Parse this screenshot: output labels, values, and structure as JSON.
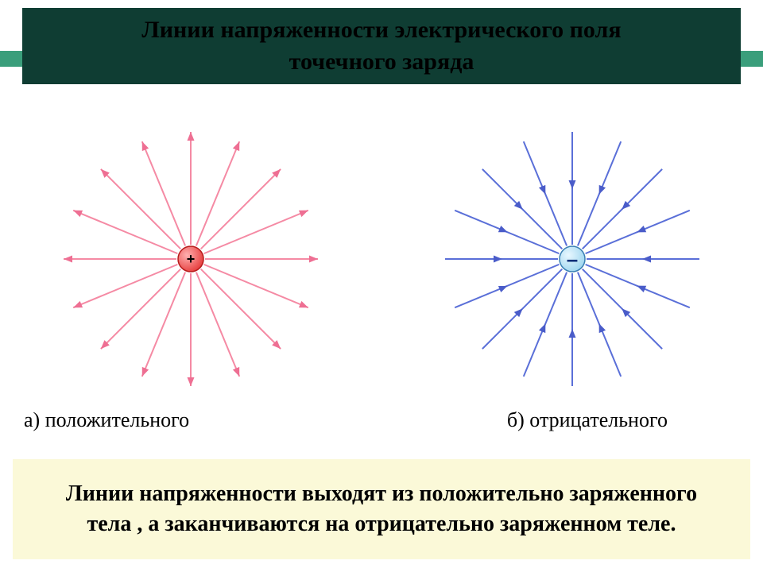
{
  "header": {
    "title_line1": "Линии напряженности электрического поля",
    "title_line2": "точечного заряда",
    "banner_bg": "#0f3d33",
    "banner_text_color": "#000000",
    "stripe_color": "#3a9e7b"
  },
  "diagrams": {
    "num_lines": 16,
    "line_length": 160,
    "charge_radius": 16,
    "positive": {
      "caption": "а) положительного",
      "line_color": "#f58aa4",
      "arrow_color": "#ee6f93",
      "fill_color": "#e63e3e",
      "fill_highlight": "#ffb0b0",
      "stroke_color": "#b71c1c",
      "sign": "+",
      "sign_color": "#000000",
      "direction": "outward"
    },
    "negative": {
      "caption": "б) отрицательного",
      "line_color": "#5a6fd8",
      "arrow_color": "#4a5cc9",
      "fill_color": "#9fd6ef",
      "fill_highlight": "#e8f7ff",
      "stroke_color": "#3a7fb3",
      "sign": "–",
      "sign_color": "#0a2e78",
      "direction": "inward"
    }
  },
  "footer": {
    "text": "Линии напряженности выходят из положительно заряженного тела , а заканчиваются на отрицательно заряженном теле.",
    "bg": "#fbf9d8",
    "text_color": "#000000"
  },
  "page_bg": "#ffffff"
}
